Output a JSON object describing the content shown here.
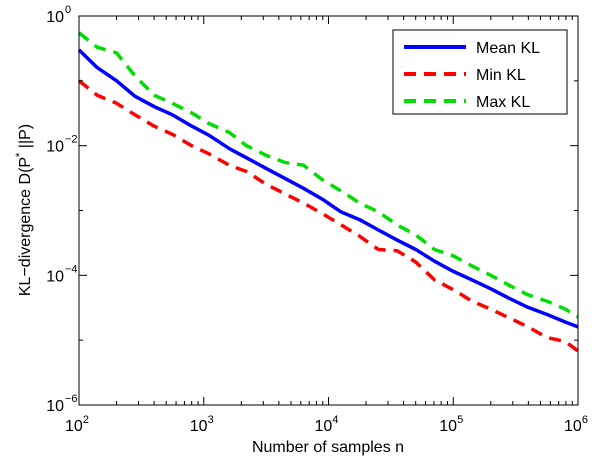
{
  "chart_data": {
    "type": "line",
    "x_scale": "log",
    "y_scale": "log",
    "xlim": [
      100,
      1000000
    ],
    "ylim": [
      1e-06,
      1
    ],
    "xlabel": "Number of samples n",
    "ylabel_prefix": "KL−divergence D(P",
    "ylabel_sup": "*",
    "ylabel_suffix": " ||P)",
    "x_ticks": [
      {
        "base": "10",
        "exp": "2",
        "value": 100
      },
      {
        "base": "10",
        "exp": "3",
        "value": 1000
      },
      {
        "base": "10",
        "exp": "4",
        "value": 10000
      },
      {
        "base": "10",
        "exp": "5",
        "value": 100000
      },
      {
        "base": "10",
        "exp": "6",
        "value": 1000000
      }
    ],
    "y_ticks": [
      {
        "base": "10",
        "exp": "0",
        "value": 1
      },
      {
        "base": "10",
        "exp": "−2",
        "value": 0.01
      },
      {
        "base": "10",
        "exp": "−4",
        "value": 0.0001
      },
      {
        "base": "10",
        "exp": "−6",
        "value": 1e-06
      }
    ],
    "legend_position": "top-right",
    "grid": false,
    "x": [
      100,
      140,
      200,
      280,
      400,
      560,
      800,
      1100,
      1600,
      2200,
      3200,
      4500,
      6300,
      8900,
      12600,
      17800,
      25100,
      35500,
      50100,
      70800,
      100000,
      141000,
      200000,
      282000,
      398000,
      562000,
      794000,
      1000000
    ],
    "series": [
      {
        "name": "Mean KL",
        "color": "#0000ff",
        "style": "solid",
        "values": [
          0.3,
          0.16,
          0.1,
          0.058,
          0.04,
          0.03,
          0.02,
          0.0145,
          0.009,
          0.0065,
          0.0044,
          0.0031,
          0.0022,
          0.0015,
          0.00095,
          0.00072,
          0.0005,
          0.00035,
          0.00025,
          0.000165,
          0.000115,
          8.5e-05,
          6.2e-05,
          4.4e-05,
          3.2e-05,
          2.5e-05,
          1.9e-05,
          1.6e-05
        ]
      },
      {
        "name": "Min KL",
        "color": "#ff0000",
        "style": "dashed",
        "values": [
          0.1,
          0.06,
          0.045,
          0.03,
          0.02,
          0.015,
          0.01,
          0.0075,
          0.005,
          0.004,
          0.0025,
          0.0018,
          0.0013,
          0.0009,
          0.0006,
          0.0004,
          0.00025,
          0.00024,
          0.00016,
          8.5e-05,
          6e-05,
          4e-05,
          3e-05,
          2.2e-05,
          1.6e-05,
          1.1e-05,
          9.5e-06,
          6.8e-06
        ]
      },
      {
        "name": "Max KL",
        "color": "#00dd00",
        "style": "dashed",
        "values": [
          0.55,
          0.33,
          0.27,
          0.12,
          0.06,
          0.045,
          0.032,
          0.022,
          0.016,
          0.01,
          0.007,
          0.0055,
          0.005,
          0.003,
          0.002,
          0.0013,
          0.00095,
          0.0006,
          0.00042,
          0.00025,
          0.0002,
          0.00014,
          0.0001,
          7e-05,
          5e-05,
          4e-05,
          3e-05,
          2.3e-05
        ]
      }
    ]
  }
}
